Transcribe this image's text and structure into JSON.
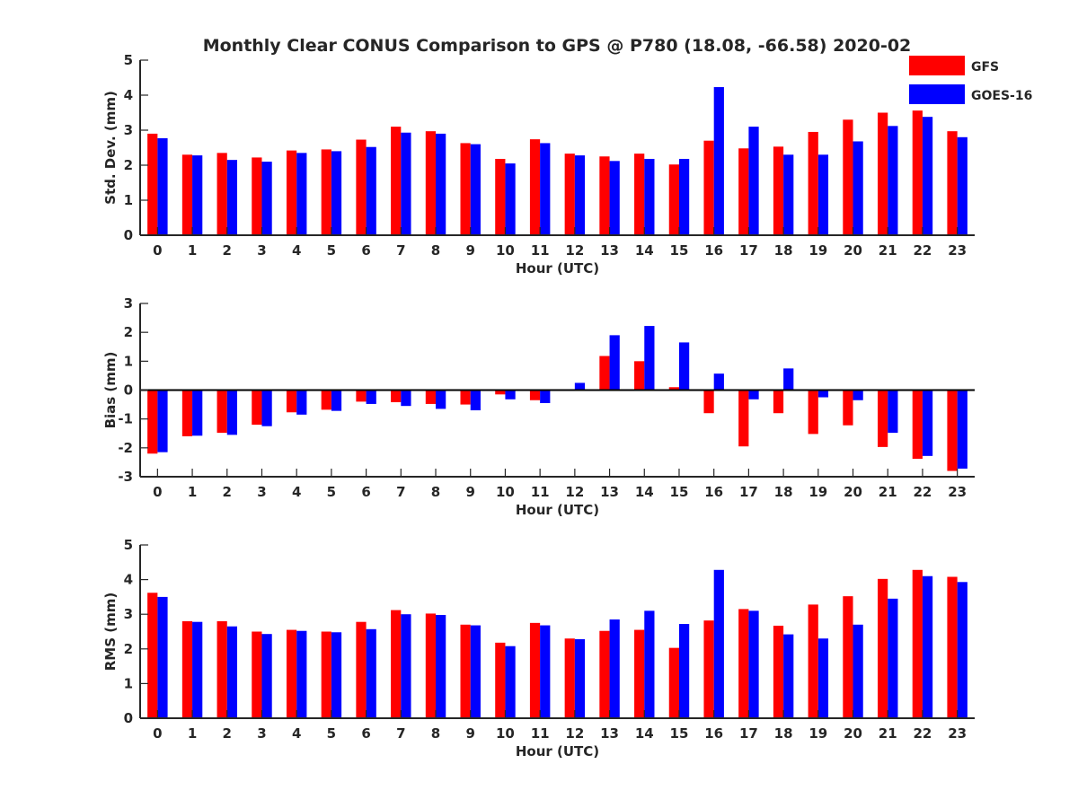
{
  "title": "Monthly Clear CONUS Comparison to GPS @ P780 (18.08, -66.58) 2020-02",
  "legend": {
    "placement": "top-right",
    "items": [
      {
        "name": "GFS",
        "color": "#ff0000"
      },
      {
        "name": "GOES-16",
        "color": "#0000ff"
      }
    ]
  },
  "chart_data": [
    {
      "type": "bar",
      "ylabel": "Std. Dev. (mm)",
      "xlabel": "Hour (UTC)",
      "ylim": [
        0,
        5
      ],
      "yticks": [
        0,
        1,
        2,
        3,
        4,
        5
      ],
      "categories": [
        "0",
        "1",
        "2",
        "3",
        "4",
        "5",
        "6",
        "7",
        "8",
        "9",
        "10",
        "11",
        "12",
        "13",
        "14",
        "15",
        "16",
        "17",
        "18",
        "19",
        "20",
        "21",
        "22",
        "23"
      ],
      "series": [
        {
          "name": "GFS",
          "color": "#ff0000",
          "values": [
            2.9,
            2.3,
            2.35,
            2.22,
            2.42,
            2.45,
            2.73,
            3.1,
            2.97,
            2.63,
            2.18,
            2.74,
            2.33,
            2.25,
            2.33,
            2.02,
            2.7,
            2.48,
            2.53,
            2.95,
            3.3,
            3.5,
            3.56,
            2.97
          ]
        },
        {
          "name": "GOES-16",
          "color": "#0000ff",
          "values": [
            2.77,
            2.28,
            2.15,
            2.1,
            2.35,
            2.4,
            2.52,
            2.93,
            2.9,
            2.6,
            2.05,
            2.63,
            2.28,
            2.12,
            2.18,
            2.18,
            4.23,
            3.1,
            2.3,
            2.3,
            2.68,
            3.12,
            3.38,
            2.8
          ]
        }
      ]
    },
    {
      "type": "bar",
      "ylabel": "Bias (mm)",
      "xlabel": "Hour (UTC)",
      "ylim": [
        -3,
        3
      ],
      "yticks": [
        -3,
        -2,
        -1,
        0,
        1,
        2,
        3
      ],
      "categories": [
        "0",
        "1",
        "2",
        "3",
        "4",
        "5",
        "6",
        "7",
        "8",
        "9",
        "10",
        "11",
        "12",
        "13",
        "14",
        "15",
        "16",
        "17",
        "18",
        "19",
        "20",
        "21",
        "22",
        "23"
      ],
      "series": [
        {
          "name": "GFS",
          "color": "#ff0000",
          "values": [
            -2.2,
            -1.6,
            -1.48,
            -1.2,
            -0.77,
            -0.68,
            -0.4,
            -0.42,
            -0.48,
            -0.5,
            -0.15,
            -0.35,
            0.0,
            1.18,
            1.0,
            0.1,
            -0.8,
            -1.95,
            -0.8,
            -1.52,
            -1.22,
            -1.97,
            -2.38,
            -2.8
          ]
        },
        {
          "name": "GOES-16",
          "color": "#0000ff",
          "values": [
            -2.15,
            -1.58,
            -1.55,
            -1.25,
            -0.85,
            -0.72,
            -0.48,
            -0.55,
            -0.65,
            -0.7,
            -0.32,
            -0.45,
            0.25,
            1.9,
            2.22,
            1.65,
            0.57,
            -0.32,
            0.75,
            -0.25,
            -0.35,
            -1.48,
            -2.28,
            -2.72
          ]
        }
      ]
    },
    {
      "type": "bar",
      "ylabel": "RMS (mm)",
      "xlabel": "Hour (UTC)",
      "ylim": [
        0,
        5
      ],
      "yticks": [
        0,
        1,
        2,
        3,
        4,
        5
      ],
      "categories": [
        "0",
        "1",
        "2",
        "3",
        "4",
        "5",
        "6",
        "7",
        "8",
        "9",
        "10",
        "11",
        "12",
        "13",
        "14",
        "15",
        "16",
        "17",
        "18",
        "19",
        "20",
        "21",
        "22",
        "23"
      ],
      "series": [
        {
          "name": "GFS",
          "color": "#ff0000",
          "values": [
            3.62,
            2.8,
            2.8,
            2.5,
            2.55,
            2.5,
            2.78,
            3.12,
            3.02,
            2.7,
            2.18,
            2.75,
            2.3,
            2.52,
            2.55,
            2.03,
            2.82,
            3.15,
            2.67,
            3.28,
            3.52,
            4.02,
            4.28,
            4.08
          ]
        },
        {
          "name": "GOES-16",
          "color": "#0000ff",
          "values": [
            3.5,
            2.78,
            2.65,
            2.43,
            2.52,
            2.48,
            2.57,
            3.0,
            2.98,
            2.68,
            2.08,
            2.68,
            2.28,
            2.85,
            3.1,
            2.72,
            4.28,
            3.1,
            2.42,
            2.3,
            2.7,
            3.45,
            4.1,
            3.93
          ]
        }
      ]
    }
  ]
}
